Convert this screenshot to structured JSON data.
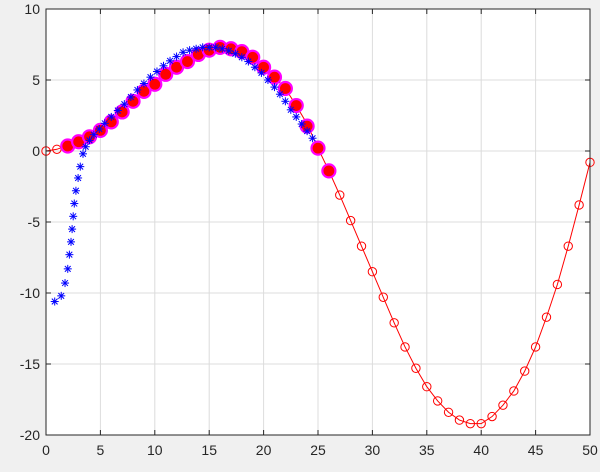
{
  "chart_data": {
    "type": "line",
    "title": "",
    "xlabel": "",
    "ylabel": "",
    "xlim": [
      0,
      50
    ],
    "ylim": [
      -20,
      10
    ],
    "xticks": [
      0,
      5,
      10,
      15,
      20,
      25,
      30,
      35,
      40,
      45,
      50
    ],
    "yticks": [
      -20,
      -15,
      -10,
      -5,
      0,
      5,
      10
    ],
    "grid": true,
    "legend": "none",
    "colors": {
      "figure_background": "#f0f0f0",
      "axes_background": "#ffffff",
      "grid": "#dcdcdc",
      "axis": "#262626",
      "red_series": "#ff0000",
      "magenta_series": "#ff00ff",
      "blue_series": "#0000ff"
    },
    "series": [
      {
        "style": "red line with open circle markers",
        "x": [
          0,
          1,
          2,
          3,
          4,
          5,
          6,
          7,
          8,
          9,
          10,
          11,
          12,
          13,
          14,
          15,
          16,
          17,
          18,
          19,
          20,
          21,
          22,
          23,
          24,
          25,
          26,
          27,
          28,
          29,
          30,
          31,
          32,
          33,
          34,
          35,
          36,
          37,
          38,
          39,
          40,
          41,
          42,
          43,
          44,
          45,
          46,
          47,
          48,
          49,
          50
        ],
        "y": [
          0.0,
          0.12,
          0.4,
          0.68,
          1.02,
          1.5,
          2.05,
          2.75,
          3.5,
          4.2,
          4.7,
          5.45,
          5.9,
          6.3,
          6.8,
          7.1,
          7.3,
          7.3,
          7.0,
          6.6,
          5.9,
          5.2,
          4.4,
          3.2,
          1.9,
          0.2,
          -1.4,
          -3.1,
          -4.9,
          -6.7,
          -8.5,
          -10.3,
          -12.1,
          -13.8,
          -15.3,
          -16.6,
          -17.6,
          -18.4,
          -18.95,
          -19.2,
          -19.2,
          -18.7,
          -17.9,
          -16.9,
          -15.5,
          -13.8,
          -11.7,
          -9.4,
          -6.7,
          -3.8,
          -0.8
        ]
      },
      {
        "style": "filled red circles with magenta outline",
        "x": [
          2,
          3,
          4,
          5,
          6,
          7,
          8,
          9,
          10,
          11,
          12,
          13,
          14,
          15,
          16,
          17,
          18,
          19,
          20,
          21,
          22,
          23,
          24,
          25,
          26
        ],
        "y": [
          0.35,
          0.65,
          1.0,
          1.45,
          2.05,
          2.75,
          3.5,
          4.2,
          4.7,
          5.4,
          5.9,
          6.3,
          6.8,
          7.1,
          7.3,
          7.2,
          7.0,
          6.6,
          5.9,
          5.2,
          4.4,
          3.2,
          1.75,
          0.2,
          -1.4
        ]
      },
      {
        "style": "blue asterisk markers",
        "x": [
          0.8,
          1.4,
          1.75,
          2.0,
          2.15,
          2.3,
          2.4,
          2.5,
          2.6,
          2.75,
          2.95,
          3.15,
          3.4,
          3.65,
          4.0,
          4.4,
          4.9,
          5.4,
          6.0,
          6.6,
          7.2,
          7.8,
          8.4,
          9.0,
          9.6,
          10.2,
          10.8,
          11.4,
          12.0,
          12.6,
          13.2,
          13.8,
          14.4,
          15.0,
          15.6,
          16.2,
          16.8,
          17.4,
          18.0,
          18.6,
          19.2,
          19.8,
          20.4,
          21.0,
          21.5,
          22.0,
          22.5,
          23.0,
          23.5,
          24.0,
          24.5
        ],
        "y": [
          -10.6,
          -10.2,
          -9.3,
          -8.3,
          -7.3,
          -6.4,
          -5.5,
          -4.6,
          -3.7,
          -2.8,
          -1.9,
          -1.1,
          -0.2,
          0.3,
          0.75,
          1.15,
          1.55,
          1.95,
          2.4,
          2.85,
          3.3,
          3.8,
          4.3,
          4.75,
          5.2,
          5.6,
          6.0,
          6.35,
          6.65,
          6.95,
          7.1,
          7.2,
          7.3,
          7.3,
          7.3,
          7.2,
          7.05,
          6.85,
          6.6,
          6.3,
          5.9,
          5.5,
          5.0,
          4.5,
          4.0,
          3.5,
          2.9,
          2.4,
          1.9,
          1.4,
          0.9
        ]
      }
    ]
  }
}
